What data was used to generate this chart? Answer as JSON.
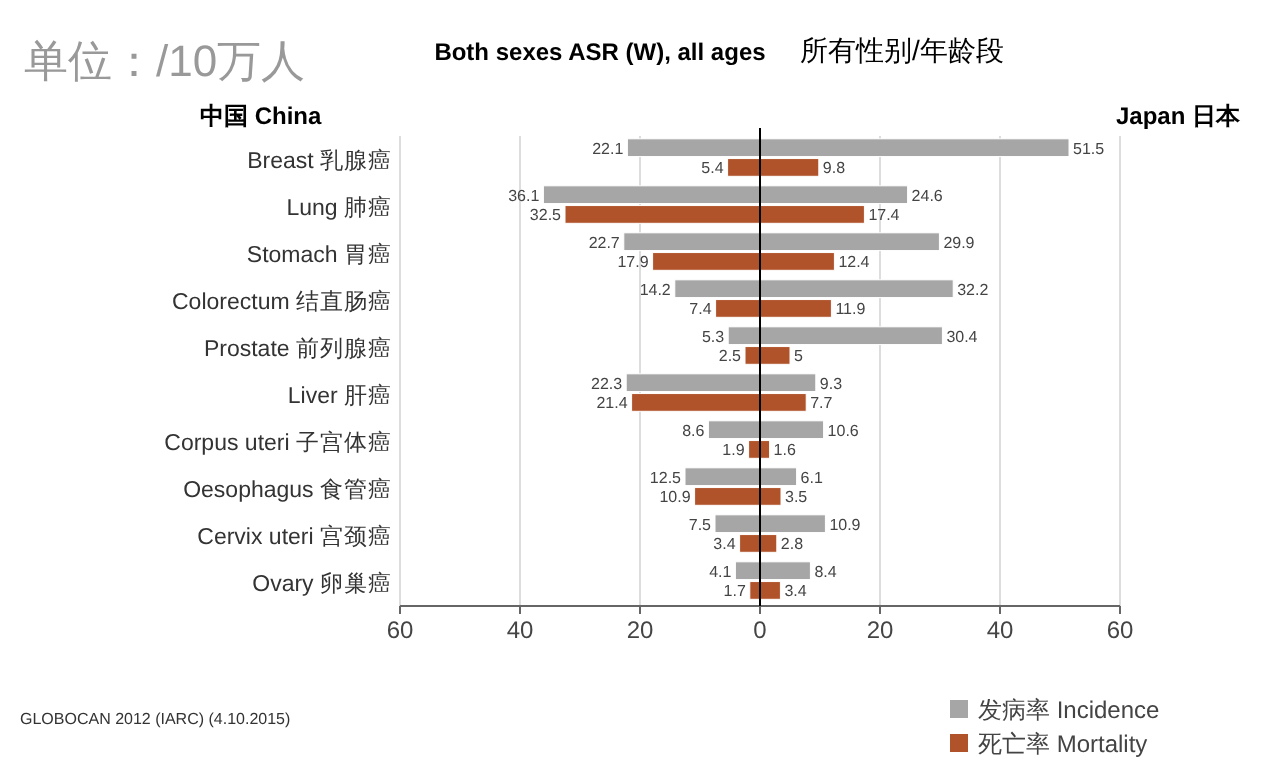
{
  "chart_data": [
    {
      "type": "bar",
      "orientation": "horizontal",
      "title": "中国 China",
      "categories": [
        "Breast 乳腺癌",
        "Lung 肺癌",
        "Stomach 胃癌",
        "Colorectum 结直肠癌",
        "Prostate 前列腺癌",
        "Liver 肝癌",
        "Corpus uteri 子宫体癌",
        "Oesophagus 食管癌",
        "Cervix uteri 宫颈癌",
        "Ovary 卵巢癌"
      ],
      "series": [
        {
          "color": "#a6a6a6",
          "values": [
            22.1,
            36.1,
            22.7,
            14.2,
            5.3,
            22.3,
            8.6,
            12.5,
            7.5,
            4.1
          ]
        },
        {
          "color": "#b0522a",
          "values": [
            5.4,
            32.5,
            17.9,
            7.4,
            2.5,
            21.4,
            1.9,
            10.9,
            3.4,
            1.7
          ]
        }
      ],
      "xlim": [
        60,
        0
      ],
      "xticks": [
        60,
        40,
        20
      ],
      "grid": "x",
      "data_labels": true,
      "annotations": [
        "单位：/10万人",
        "Both sexes ASR (W), all ages",
        "所有性别/年龄段",
        "GLOBOCAN 2012 (IARC) (4.10.2015)"
      ]
    },
    {
      "type": "bar",
      "orientation": "horizontal",
      "title": "Japan 日本",
      "categories": [
        null,
        null,
        null,
        null,
        null,
        null,
        null,
        null,
        null,
        null
      ],
      "series": [
        {
          "name": "发病率 Incidence",
          "color": "#a6a6a6",
          "values": [
            51.5,
            24.6,
            29.9,
            32.2,
            30.4,
            9.3,
            10.6,
            6.1,
            10.9,
            8.4
          ]
        },
        {
          "name": "死亡率 Mortality",
          "color": "#b0522a",
          "values": [
            9.8,
            17.4,
            12.4,
            11.9,
            5,
            7.7,
            1.6,
            3.5,
            2.8,
            3.4
          ]
        }
      ],
      "xlim": [
        0,
        60
      ],
      "xticks": [
        0,
        20,
        40,
        60
      ],
      "grid": "x",
      "data_labels": true,
      "legend": "bottom right"
    }
  ]
}
